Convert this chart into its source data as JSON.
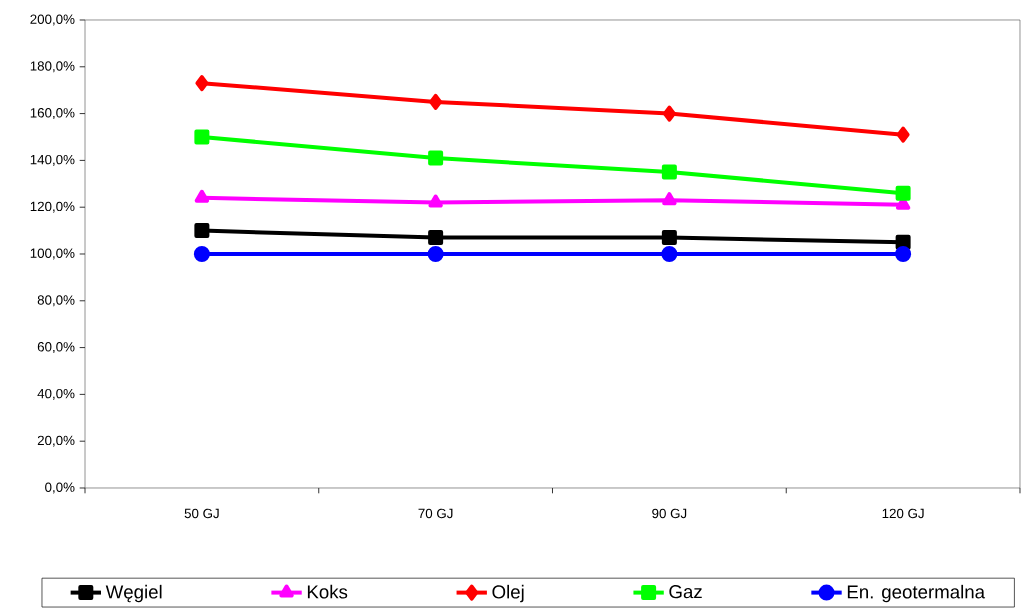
{
  "chart_data": {
    "type": "line",
    "categories": [
      "50 GJ",
      "70 GJ",
      "90 GJ",
      "120 GJ"
    ],
    "series": [
      {
        "name": "Węgiel",
        "color": "#000000",
        "marker": "square",
        "values": [
          110,
          107,
          107,
          105
        ]
      },
      {
        "name": "Koks",
        "color": "#ff00ff",
        "marker": "triangle",
        "values": [
          124,
          122,
          123,
          121
        ]
      },
      {
        "name": "Olej",
        "color": "#ff0000",
        "marker": "diamond",
        "values": [
          173,
          165,
          160,
          151
        ]
      },
      {
        "name": "Gaz",
        "color": "#00ff00",
        "marker": "square",
        "values": [
          150,
          141,
          135,
          126
        ]
      },
      {
        "name": "En. geotermalna",
        "color": "#0000ff",
        "marker": "circle",
        "values": [
          100,
          100,
          100,
          100
        ]
      }
    ],
    "ylim": [
      0,
      200
    ],
    "yticks": [
      {
        "value": 0,
        "label": "0,0%"
      },
      {
        "value": 20,
        "label": "20,0%"
      },
      {
        "value": 40,
        "label": "40,0%"
      },
      {
        "value": 60,
        "label": "60,0%"
      },
      {
        "value": 80,
        "label": "80,0%"
      },
      {
        "value": 100,
        "label": "100,0%"
      },
      {
        "value": 120,
        "label": "120,0%"
      },
      {
        "value": 140,
        "label": "140,0%"
      },
      {
        "value": 160,
        "label": "160,0%"
      },
      {
        "value": 180,
        "label": "180,0%"
      },
      {
        "value": 200,
        "label": "200,0%"
      }
    ],
    "legend": "bottom",
    "line_style": "solid"
  }
}
